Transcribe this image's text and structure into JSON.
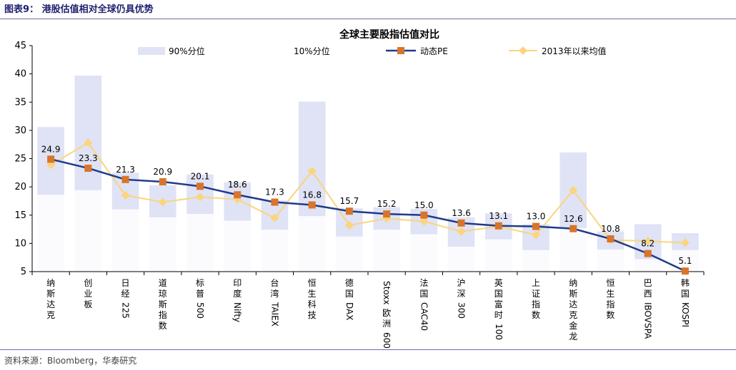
{
  "figure": {
    "title": "图表9：  港股估值相对全球仍具优势",
    "source": "资料来源：Bloomberg，华泰研究"
  },
  "chart_data": {
    "type": "bar",
    "title": "全球主要股指估值对比",
    "categories": [
      "纳斯达克",
      "创业板",
      "日经225",
      "道琼斯指数",
      "标普500",
      "印度Nifty",
      "台湾TAIEX",
      "恒生科技",
      "德国DAX",
      "Stoxx欧洲600",
      "法国CAC40",
      "沪深300",
      "英国富时100",
      "上证指数",
      "纳斯达克金龙",
      "恒生指数",
      "巴西IBOVSPA",
      "韩国KOSPI"
    ],
    "category_lines": [
      [
        "纳",
        "斯",
        "达",
        "克"
      ],
      [
        "创",
        "业",
        "板"
      ],
      [
        "日",
        "经",
        "225"
      ],
      [
        "道",
        "琼",
        "斯",
        "指",
        "数"
      ],
      [
        "标",
        "普",
        "500"
      ],
      [
        "印",
        "度",
        "Nifty"
      ],
      [
        "台",
        "湾",
        "TAIEX"
      ],
      [
        "恒",
        "生",
        "科",
        "技"
      ],
      [
        "德",
        "国",
        "DAX"
      ],
      [
        "Stoxx",
        "欧",
        "洲",
        "600"
      ],
      [
        "法",
        "国",
        "CAC40"
      ],
      [
        "沪",
        "深",
        "300"
      ],
      [
        "英",
        "国",
        "富",
        "时",
        "100"
      ],
      [
        "上",
        "证",
        "指",
        "数"
      ],
      [
        "纳",
        "斯",
        "达",
        "克",
        "金",
        "龙"
      ],
      [
        "恒",
        "生",
        "指",
        "数"
      ],
      [
        "巴",
        "西",
        "IBOVSPA"
      ],
      [
        "韩",
        "国",
        "KOSPI"
      ]
    ],
    "series": [
      {
        "name": "90%分位",
        "kind": "floating-bar",
        "values": [
          30.6,
          39.7,
          22.5,
          20.3,
          22.2,
          20.8,
          17.6,
          35.1,
          16.2,
          16.4,
          16.1,
          14.6,
          15.3,
          13.4,
          26.1,
          12.1,
          13.4,
          11.8
        ]
      },
      {
        "name": "10%分位",
        "kind": "floating-bar",
        "values": [
          18.6,
          19.4,
          16.0,
          14.6,
          15.2,
          14.0,
          12.4,
          14.8,
          11.2,
          12.4,
          11.6,
          9.4,
          10.7,
          8.8,
          12.7,
          8.9,
          7.2,
          8.8
        ]
      },
      {
        "name": "动态PE",
        "kind": "line",
        "values": [
          24.9,
          23.3,
          21.3,
          20.9,
          20.1,
          18.6,
          17.3,
          16.8,
          15.7,
          15.2,
          15.0,
          13.6,
          13.1,
          13.0,
          12.6,
          10.8,
          8.2,
          5.1
        ]
      },
      {
        "name": "2013年以来均值",
        "kind": "line",
        "values": [
          23.9,
          27.8,
          18.5,
          17.3,
          18.2,
          17.8,
          14.5,
          22.8,
          13.2,
          14.4,
          13.9,
          12.1,
          13.0,
          11.5,
          19.4,
          10.6,
          10.4,
          10.1
        ]
      }
    ],
    "value_labels": [
      "24.9",
      "23.3",
      "21.3",
      "20.9",
      "20.1",
      "18.6",
      "17.3",
      "16.8",
      "15.7",
      "15.2",
      "15.0",
      "13.6",
      "13.1",
      "13.0",
      "12.6",
      "10.8",
      "8.2",
      "5.1"
    ],
    "ylim": [
      5,
      45
    ],
    "yticks": [
      5,
      10,
      15,
      20,
      25,
      30,
      35,
      40,
      45
    ],
    "legend_position": "top",
    "colors": {
      "band": "#dfe3f5",
      "pe_line": "#1f3c88",
      "pe_marker": "#d9742b",
      "avg_line": "#fbd47e",
      "avg_marker": "#fbd47e",
      "axis": "#000000"
    }
  }
}
